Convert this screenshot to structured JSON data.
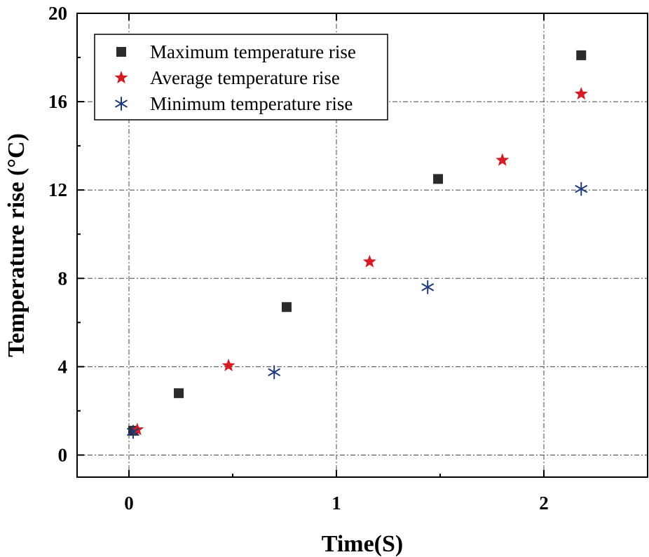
{
  "chart_data": {
    "type": "scatter",
    "title": "",
    "xlabel": "Time(S)",
    "ylabel": "Temperature rise (°C)",
    "xlim": [
      -0.25,
      2.5
    ],
    "ylim": [
      -1,
      20
    ],
    "xticks": [
      0,
      1,
      2
    ],
    "yticks": [
      0,
      4,
      8,
      12,
      16,
      20
    ],
    "xtick_labels": [
      "0",
      "1",
      "2"
    ],
    "ytick_labels": [
      "0",
      "4",
      "8",
      "12",
      "16",
      "20"
    ],
    "grid": true,
    "legend_position": "top-left",
    "series": [
      {
        "name": "Maximum temperature rise",
        "marker": "square",
        "color": "#2b2b2b",
        "points": [
          {
            "x": 0.02,
            "y": 1.1
          },
          {
            "x": 0.24,
            "y": 2.8
          },
          {
            "x": 0.76,
            "y": 6.7
          },
          {
            "x": 1.49,
            "y": 12.5
          },
          {
            "x": 2.18,
            "y": 18.1
          }
        ]
      },
      {
        "name": "Average temperature rise",
        "marker": "star",
        "color": "#d41c24",
        "points": [
          {
            "x": 0.04,
            "y": 1.15
          },
          {
            "x": 0.48,
            "y": 4.05
          },
          {
            "x": 1.16,
            "y": 8.75
          },
          {
            "x": 1.8,
            "y": 13.35
          },
          {
            "x": 2.18,
            "y": 16.35
          }
        ]
      },
      {
        "name": "Minimum temperature rise",
        "marker": "asterisk",
        "color": "#1f3a7a",
        "points": [
          {
            "x": 0.02,
            "y": 1.05
          },
          {
            "x": 0.7,
            "y": 3.75
          },
          {
            "x": 1.44,
            "y": 7.6
          },
          {
            "x": 2.18,
            "y": 12.05
          }
        ]
      }
    ]
  }
}
